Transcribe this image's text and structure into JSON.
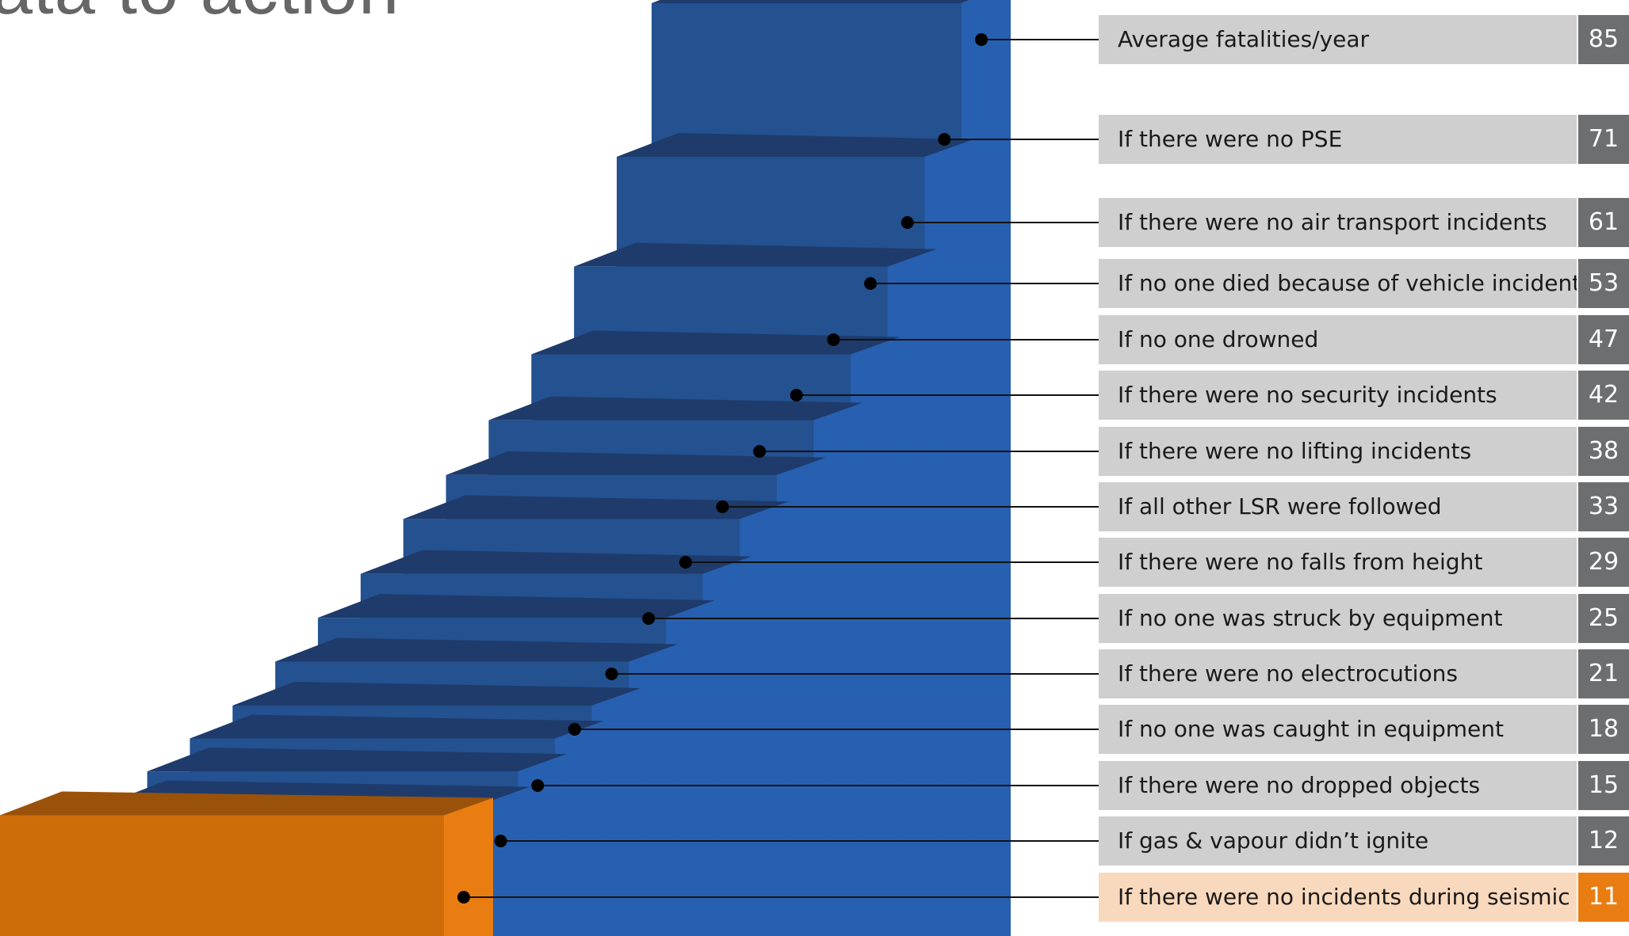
{
  "title_fragment": "ata to action",
  "colors": {
    "step_front": "#24518f",
    "step_top": "#1e3b6b",
    "step_side": "#2760b0",
    "base_front": "#cf6c0a",
    "base_top": "#9a520a",
    "base_side": "#e97d12",
    "label_bg": "#cfcfd0",
    "value_bg": "#6d6e70",
    "highlight_label_bg": "#f9d9bd",
    "highlight_value_bg": "#e97d12"
  },
  "chart_data": {
    "type": "bar",
    "categories": [
      "Average fatalities/year",
      "If there were no PSE",
      "If there were no air transport incidents",
      "If no one died because of vehicle incidents",
      "If no one drowned",
      "If there were no security incidents",
      "If there were no lifting incidents",
      "If all other LSR were followed",
      "If there were no falls from height",
      "If no one was struck by equipment",
      "If there were no electrocutions",
      "If no one was caught in equipment",
      "If there were no dropped objects",
      "If gas & vapour didn’t ignite",
      "If there were no incidents during seismic"
    ],
    "values": [
      85,
      71,
      61,
      53,
      47,
      42,
      38,
      33,
      29,
      25,
      21,
      18,
      15,
      12,
      11
    ],
    "highlight_index": 14
  }
}
